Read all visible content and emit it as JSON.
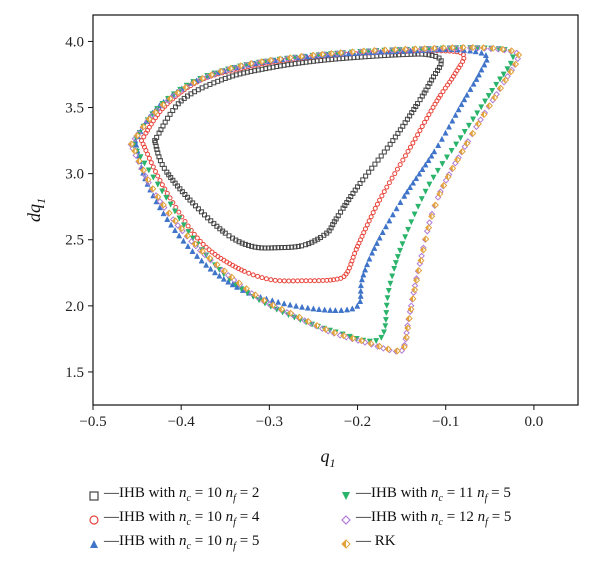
{
  "chart_data": {
    "type": "scatter",
    "xlabel": "q",
    "xlabel_sub": "1",
    "ylabel": "dq",
    "ylabel_sub": "1",
    "xlim": [
      -0.5,
      0.05
    ],
    "ylim": [
      1.25,
      4.2
    ],
    "xticks": [
      -0.5,
      -0.4,
      -0.3,
      -0.2,
      -0.1,
      0.0
    ],
    "xtick_labels": [
      "−0.5",
      "−0.4",
      "−0.3",
      "−0.2",
      "−0.1",
      "0.0"
    ],
    "yticks": [
      1.5,
      2.0,
      2.5,
      3.0,
      3.5,
      4.0
    ],
    "ytick_labels": [
      "1.5",
      "2.0",
      "2.5",
      "3.0",
      "3.5",
      "4.0"
    ],
    "legend_position": "below",
    "series": [
      {
        "name": "—IHB with nc = 10 nf = 2",
        "legend": {
          "prefix": "—IHB with ",
          "nc": "10",
          "nf": "2"
        },
        "color": "#444444",
        "marker": "square",
        "x": [
          -0.43,
          -0.4,
          -0.35,
          -0.3,
          -0.25,
          -0.2,
          -0.15,
          -0.12,
          -0.105,
          -0.115,
          -0.13,
          -0.16,
          -0.2,
          -0.225,
          -0.235,
          -0.26,
          -0.29,
          -0.32,
          -0.35,
          -0.39,
          -0.42,
          -0.43
        ],
        "y": [
          3.25,
          3.55,
          3.72,
          3.8,
          3.85,
          3.88,
          3.9,
          3.9,
          3.85,
          3.72,
          3.55,
          3.25,
          2.9,
          2.65,
          2.55,
          2.46,
          2.44,
          2.45,
          2.55,
          2.8,
          3.05,
          3.25
        ]
      },
      {
        "name": "—IHB with nc = 10 nf = 4",
        "legend": {
          "prefix": "—IHB with ",
          "nc": "10",
          "nf": "4"
        },
        "color": "#e8453c",
        "marker": "circle",
        "x": [
          -0.445,
          -0.42,
          -0.38,
          -0.33,
          -0.28,
          -0.22,
          -0.16,
          -0.11,
          -0.08,
          -0.09,
          -0.11,
          -0.14,
          -0.175,
          -0.2,
          -0.212,
          -0.225,
          -0.26,
          -0.3,
          -0.34,
          -0.38,
          -0.42,
          -0.445
        ],
        "y": [
          3.25,
          3.5,
          3.7,
          3.8,
          3.86,
          3.9,
          3.92,
          3.93,
          3.9,
          3.75,
          3.55,
          3.2,
          2.8,
          2.45,
          2.25,
          2.2,
          2.19,
          2.2,
          2.3,
          2.5,
          2.9,
          3.25
        ]
      },
      {
        "name": "—IHB with nc = 10 nf = 5",
        "legend": {
          "prefix": "—IHB with ",
          "nc": "10",
          "nf": "5"
        },
        "color": "#3f74c9",
        "marker": "triangle-up",
        "x": [
          -0.452,
          -0.43,
          -0.39,
          -0.34,
          -0.28,
          -0.21,
          -0.14,
          -0.09,
          -0.055,
          -0.06,
          -0.08,
          -0.11,
          -0.15,
          -0.18,
          -0.195,
          -0.198,
          -0.215,
          -0.25,
          -0.29,
          -0.33,
          -0.37,
          -0.41,
          -0.44,
          -0.452
        ],
        "y": [
          3.25,
          3.48,
          3.68,
          3.8,
          3.87,
          3.91,
          3.93,
          3.94,
          3.9,
          3.78,
          3.55,
          3.2,
          2.8,
          2.45,
          2.2,
          2.02,
          1.97,
          1.98,
          2.03,
          2.12,
          2.3,
          2.6,
          2.95,
          3.25
        ]
      },
      {
        "name": "—IHB with nc = 11 nf = 5",
        "legend": {
          "prefix": "—IHB with ",
          "nc": "11",
          "nf": "5"
        },
        "color": "#2ab36a",
        "marker": "triangle-down",
        "x": [
          -0.455,
          -0.43,
          -0.39,
          -0.34,
          -0.28,
          -0.2,
          -0.13,
          -0.07,
          -0.03,
          -0.025,
          -0.045,
          -0.08,
          -0.12,
          -0.15,
          -0.165,
          -0.17,
          -0.185,
          -0.22,
          -0.26,
          -0.3,
          -0.34,
          -0.38,
          -0.42,
          -0.455
        ],
        "y": [
          3.22,
          3.47,
          3.68,
          3.8,
          3.87,
          3.92,
          3.94,
          3.95,
          3.93,
          3.85,
          3.65,
          3.3,
          2.9,
          2.45,
          2.1,
          1.8,
          1.73,
          1.79,
          1.88,
          2.0,
          2.17,
          2.45,
          2.85,
          3.22
        ]
      },
      {
        "name": "—IHB with nc = 12 nf = 5",
        "legend": {
          "prefix": "—IHB with ",
          "nc": "12",
          "nf": "5"
        },
        "color": "#b07bd6",
        "marker": "diamond",
        "x": [
          -0.457,
          -0.43,
          -0.39,
          -0.34,
          -0.28,
          -0.2,
          -0.13,
          -0.07,
          -0.03,
          -0.018,
          -0.035,
          -0.07,
          -0.11,
          -0.13,
          -0.142,
          -0.148,
          -0.16,
          -0.19,
          -0.23,
          -0.27,
          -0.31,
          -0.35,
          -0.39,
          -0.43,
          -0.457
        ],
        "y": [
          3.22,
          3.46,
          3.67,
          3.8,
          3.87,
          3.92,
          3.94,
          3.95,
          3.93,
          3.88,
          3.68,
          3.3,
          2.8,
          2.3,
          1.9,
          1.68,
          1.66,
          1.72,
          1.8,
          1.92,
          2.05,
          2.25,
          2.5,
          2.85,
          3.22
        ]
      },
      {
        "name": "— RK",
        "legend": {
          "prefix": "— RK",
          "nc": "",
          "nf": ""
        },
        "color": "#e2a23c",
        "marker": "diamond-half",
        "x": [
          -0.457,
          -0.43,
          -0.39,
          -0.34,
          -0.28,
          -0.2,
          -0.13,
          -0.07,
          -0.03,
          -0.018,
          -0.035,
          -0.07,
          -0.11,
          -0.13,
          -0.142,
          -0.148,
          -0.16,
          -0.19,
          -0.23,
          -0.27,
          -0.31,
          -0.35,
          -0.39,
          -0.43,
          -0.457
        ],
        "y": [
          3.22,
          3.46,
          3.67,
          3.8,
          3.87,
          3.92,
          3.94,
          3.95,
          3.93,
          3.88,
          3.68,
          3.3,
          2.8,
          2.3,
          1.9,
          1.68,
          1.66,
          1.72,
          1.8,
          1.92,
          2.05,
          2.25,
          2.5,
          2.85,
          3.22
        ]
      }
    ]
  }
}
